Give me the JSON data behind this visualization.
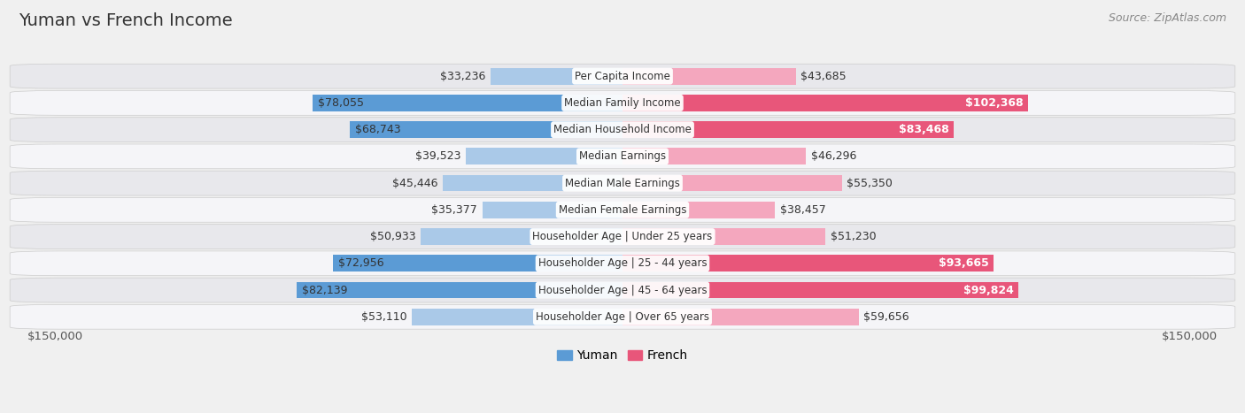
{
  "title": "Yuman vs French Income",
  "source": "Source: ZipAtlas.com",
  "categories": [
    "Per Capita Income",
    "Median Family Income",
    "Median Household Income",
    "Median Earnings",
    "Median Male Earnings",
    "Median Female Earnings",
    "Householder Age | Under 25 years",
    "Householder Age | 25 - 44 years",
    "Householder Age | 45 - 64 years",
    "Householder Age | Over 65 years"
  ],
  "yuman_values": [
    33236,
    78055,
    68743,
    39523,
    45446,
    35377,
    50933,
    72956,
    82139,
    53110
  ],
  "french_values": [
    43685,
    102368,
    83468,
    46296,
    55350,
    38457,
    51230,
    93665,
    99824,
    59656
  ],
  "max_val": 150000,
  "yuman_color_light": "#aac9e8",
  "yuman_color_dark": "#5b9bd5",
  "french_color_light": "#f4a7be",
  "french_color_dark": "#e8567a",
  "bar_height": 0.62,
  "bg_color": "#f0f0f0",
  "row_colors": [
    "#e8e8ec",
    "#f5f5f8"
  ],
  "row_border_color": "#cccccc",
  "title_fontsize": 14,
  "source_fontsize": 9,
  "tick_fontsize": 9.5,
  "value_fontsize": 9,
  "cat_fontsize": 8.5,
  "legend_fontsize": 10,
  "yuman_label": "Yuman",
  "french_label": "French",
  "axis_label_left": "$150,000",
  "axis_label_right": "$150,000",
  "yuman_large_threshold": 55000,
  "french_large_threshold": 70000
}
